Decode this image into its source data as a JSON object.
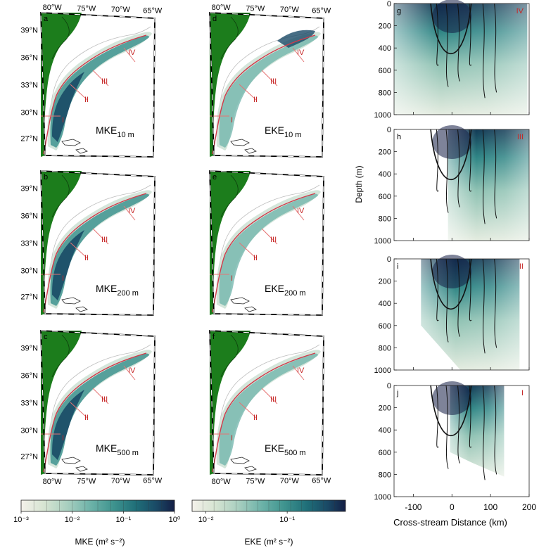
{
  "chart_data": [
    {
      "type": "heatmap",
      "panels": [
        {
          "letter": "a",
          "label_main": "MKE",
          "label_sub": "10 m"
        },
        {
          "letter": "b",
          "label_main": "MKE",
          "label_sub": "200 m"
        },
        {
          "letter": "c",
          "label_main": "MKE",
          "label_sub": "500 m"
        },
        {
          "letter": "d",
          "label_main": "EKE",
          "label_sub": "10 m"
        },
        {
          "letter": "e",
          "label_main": "EKE",
          "label_sub": "200 m"
        },
        {
          "letter": "f",
          "label_main": "EKE",
          "label_sub": "500 m"
        }
      ],
      "lon_ticks_top": [
        "80°W",
        "75°W",
        "70°W",
        "65°W"
      ],
      "lon_ticks_bottom": [
        "80°W",
        "75°W",
        "70°W",
        "65°W"
      ],
      "lat_ticks": [
        "39°N",
        "36°N",
        "33°N",
        "30°N",
        "27°N"
      ],
      "section_labels": [
        "I",
        "II",
        "III",
        "IV"
      ]
    },
    {
      "type": "heatmap",
      "ylabel": "Depth (m)",
      "xlabel": "Cross-stream Distance (km)",
      "x_ticks": [
        -100,
        0,
        100,
        200
      ],
      "xlim": [
        -150,
        200
      ],
      "y_ticks": [
        0,
        200,
        400,
        600,
        800,
        1000
      ],
      "ylim": [
        0,
        1000
      ],
      "panels": [
        {
          "letter": "g",
          "section": "IV"
        },
        {
          "letter": "h",
          "section": "III"
        },
        {
          "letter": "i",
          "section": "II"
        },
        {
          "letter": "j",
          "section": "I"
        }
      ]
    },
    {
      "type": "colorbar",
      "xlabel": "MKE (m² s⁻²)",
      "tick_labels": [
        "10⁻³",
        "10⁻²",
        "10⁻¹",
        "10⁰"
      ]
    },
    {
      "type": "colorbar",
      "xlabel": "EKE (m² s⁻²)",
      "tick_labels": [
        "10⁻²",
        "10⁻¹"
      ]
    }
  ],
  "colors": {
    "land": "#1c7d1c",
    "current_axis": "#d23a4a",
    "section_label": "#c62828",
    "colormap": [
      "#f4f1ea",
      "#d6e4d2",
      "#a9cfc0",
      "#6eb3a9",
      "#3f948f",
      "#1f6e78",
      "#1a4a66",
      "#141e45"
    ]
  }
}
